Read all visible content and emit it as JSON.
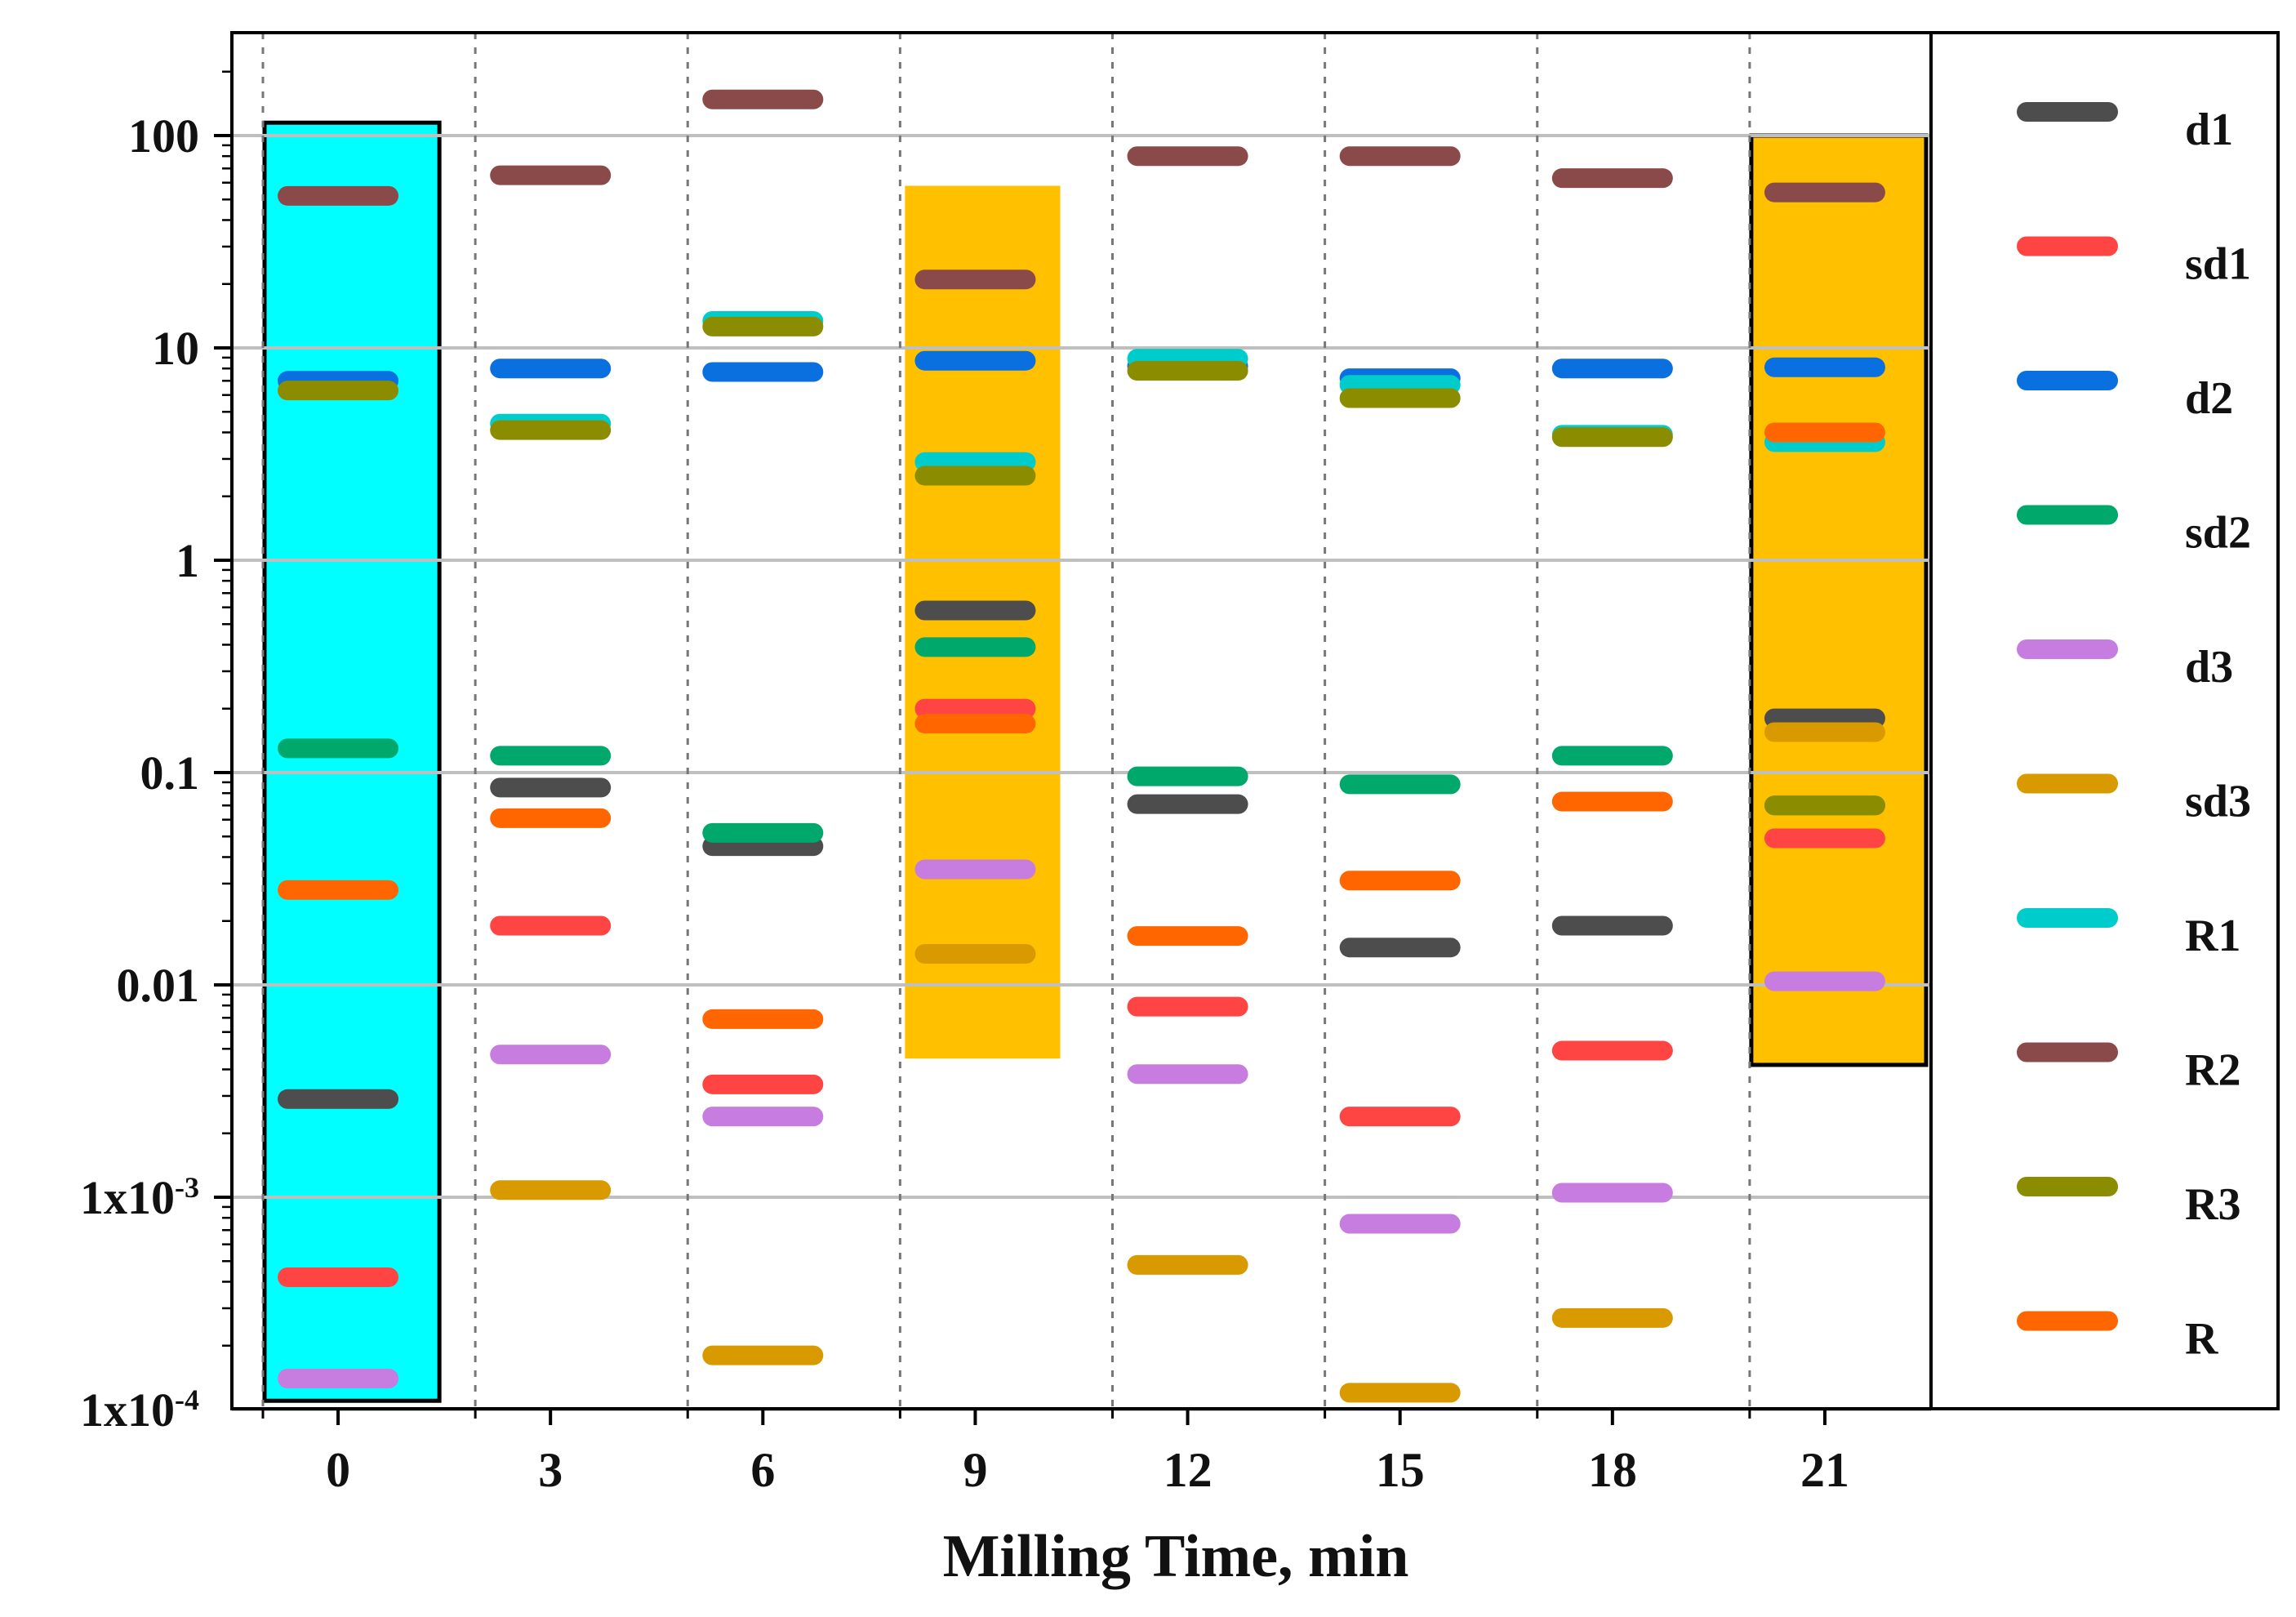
{
  "chart_data": {
    "type": "scatter",
    "title": "",
    "xlabel": "Milling Time, min",
    "ylabel": "",
    "yscale": "log",
    "ylim": [
      0.0001,
      300
    ],
    "categories": [
      "0",
      "3",
      "6",
      "9",
      "12",
      "15",
      "18",
      "21"
    ],
    "y_tick_labels": [
      {
        "value": 100,
        "label": "100"
      },
      {
        "value": 10,
        "label": "10"
      },
      {
        "value": 1,
        "label": "1"
      },
      {
        "value": 0.1,
        "label": "0.1"
      },
      {
        "value": 0.01,
        "label": "0.01"
      },
      {
        "value": 0.001,
        "label": "1x10",
        "exponent": "-3"
      },
      {
        "value": 0.0001,
        "label": "1x10",
        "exponent": "-4"
      }
    ],
    "highlights": [
      {
        "category": "0",
        "y_from": 0.00011,
        "y_to": 115,
        "color": "#00FFFF",
        "outlined": true
      },
      {
        "category": "9",
        "y_from": 0.0045,
        "y_to": 58,
        "color": "#FFC000",
        "outlined": false
      },
      {
        "category": "21",
        "y_from": 0.0042,
        "y_to": 100,
        "color": "#FFC000",
        "outlined": true
      }
    ],
    "series": [
      {
        "name": "d1",
        "color": "#4D4D4D",
        "values": [
          0.0029,
          0.085,
          0.045,
          0.58,
          0.071,
          0.015,
          0.019,
          0.18
        ]
      },
      {
        "name": "sd1",
        "color": "#FF4444",
        "values": [
          0.00042,
          0.019,
          0.0034,
          0.2,
          0.0079,
          0.0024,
          0.0049,
          0.049
        ]
      },
      {
        "name": "d2",
        "color": "#0A6FDF",
        "values": [
          7.0,
          8.0,
          7.7,
          8.7,
          8.2,
          7.2,
          8.0,
          8.1
        ]
      },
      {
        "name": "sd2",
        "color": "#00A86B",
        "values": [
          0.13,
          0.12,
          0.052,
          0.39,
          0.096,
          0.088,
          0.12,
          0.07
        ]
      },
      {
        "name": "d3",
        "color": "#C77CDF",
        "values": [
          0.00014,
          0.0047,
          0.0024,
          0.035,
          0.0038,
          0.00075,
          0.00105,
          0.0104
        ]
      },
      {
        "name": "sd3",
        "color": "#D99A00",
        "values": [
          null,
          0.00108,
          0.00018,
          0.014,
          0.00048,
          0.00012,
          0.00027,
          0.155
        ]
      },
      {
        "name": "R1",
        "color": "#00CCCC",
        "values": [
          null,
          4.4,
          13.4,
          2.9,
          8.9,
          6.7,
          3.9,
          3.6
        ]
      },
      {
        "name": "R2",
        "color": "#8B4A4A",
        "values": [
          52,
          65,
          148,
          21,
          80,
          80,
          63,
          54
        ]
      },
      {
        "name": "R3",
        "color": "#8C8C00",
        "values": [
          6.3,
          4.1,
          12.6,
          2.5,
          7.8,
          5.8,
          3.8,
          0.07
        ]
      },
      {
        "name": "R",
        "color": "#FF6600",
        "values": [
          0.028,
          0.061,
          0.0069,
          0.17,
          0.017,
          0.031,
          0.073,
          4.0
        ]
      }
    ]
  }
}
